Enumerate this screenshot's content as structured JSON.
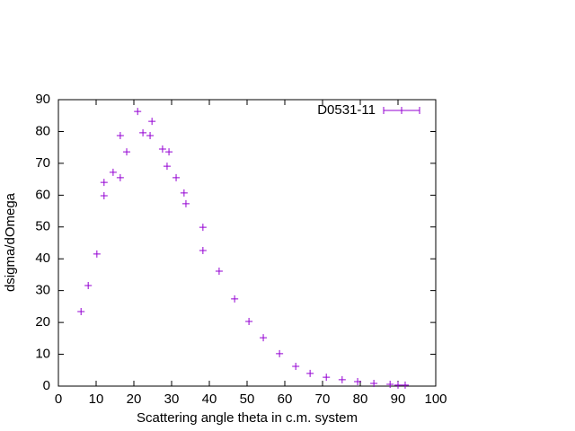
{
  "chart_data": {
    "type": "scatter",
    "xlabel": "Scattering angle theta in c.m. system",
    "ylabel": "dsigma/dOmega",
    "series": [
      {
        "name": "D0531-11",
        "color": "#9400d3",
        "x": [
          6,
          7.9,
          10.2,
          12.1,
          12.1,
          14.5,
          16.4,
          16.4,
          18.1,
          21,
          22.4,
          24.3,
          24.8,
          27.6,
          28.8,
          29.3,
          31.2,
          33.3,
          33.8,
          38.3,
          38.3,
          42.6,
          46.7,
          50.5,
          54.3,
          58.6,
          62.9,
          66.7,
          71,
          75.2,
          79.3,
          83.6,
          87.9,
          90,
          91.9
        ],
        "values": [
          23.4,
          31.6,
          41.5,
          59.8,
          64,
          67.2,
          78.7,
          65.5,
          73.6,
          86.3,
          79.6,
          78.7,
          83.2,
          74.5,
          69.1,
          73.6,
          65.5,
          60.7,
          57.3,
          49.9,
          42.6,
          36.1,
          27.4,
          20.3,
          15.2,
          10.2,
          6.2,
          4,
          2.8,
          2,
          1.4,
          0.85,
          0.56,
          0.3,
          0.3
        ]
      }
    ],
    "xlim": [
      0,
      100
    ],
    "xticks": [
      0,
      10,
      20,
      30,
      40,
      50,
      60,
      70,
      80,
      90,
      100
    ],
    "ylim": [
      0,
      90
    ],
    "yticks": [
      0,
      10,
      20,
      30,
      40,
      50,
      60,
      70,
      80,
      90
    ],
    "grid": false,
    "legend": "top-right"
  }
}
